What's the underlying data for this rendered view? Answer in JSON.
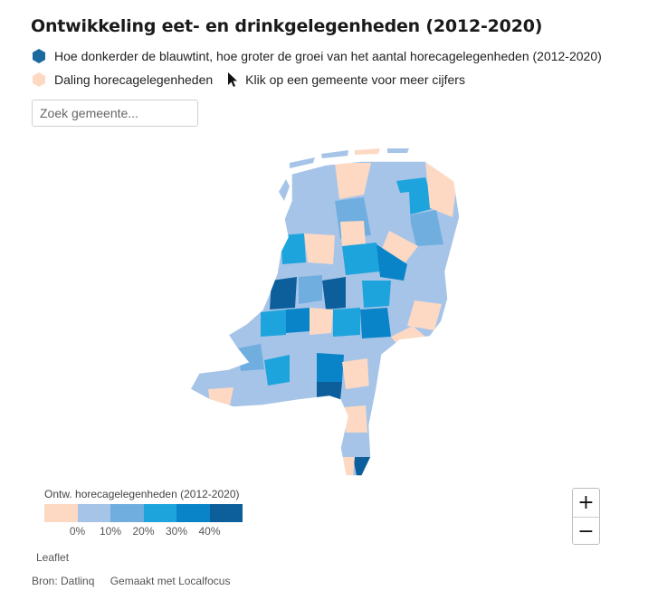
{
  "title": "Ontwikkeling eet- en drinkgelegenheden (2012-2020)",
  "legend": {
    "growth_text": "Hoe donkerder de blauwtint, hoe groter de groei van het aantal horecagelegenheden (2012-2020)",
    "decline_text": "Daling horecagelegenheden",
    "click_text": "Klik op een gemeente voor meer cijfers",
    "growth_color": "#1a6aa0",
    "decline_color": "#fdd9c4"
  },
  "search": {
    "placeholder": "Zoek gemeente..."
  },
  "map": {
    "region": "Nederland",
    "icon": "netherlands-municipality-map"
  },
  "scale": {
    "title": "Ontw. horecagelegenheden (2012-2020)",
    "colors": [
      "#fdd9c4",
      "#a6c4e7",
      "#70aee0",
      "#1ea4dc",
      "#0a84c8",
      "#0d5f9c"
    ],
    "labels": [
      "0%",
      "10%",
      "20%",
      "30%",
      "40%"
    ]
  },
  "zoom": {
    "in_label": "+",
    "out_label": "−"
  },
  "attribution": "Leaflet",
  "footer": {
    "source": "Bron: Datlinq",
    "made_with": "Gemaakt met Localfocus"
  }
}
